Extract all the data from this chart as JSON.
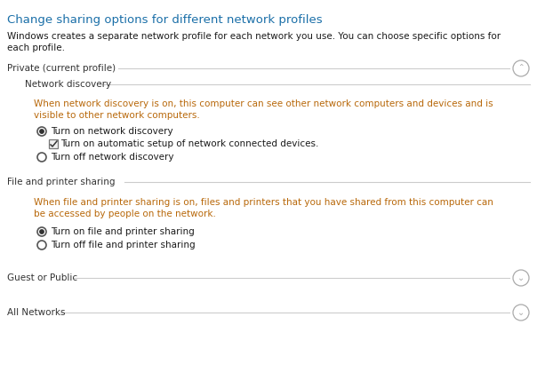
{
  "bg_color": "#ffffff",
  "title": "Change sharing options for different network profiles",
  "title_color": "#1a6fa8",
  "title_fontsize": 9.5,
  "subtitle_line1": "Windows creates a separate network profile for each network you use. You can choose specific options for",
  "subtitle_line2": "each profile.",
  "subtitle_color": "#1a1a1a",
  "subtitle_fontsize": 7.5,
  "section1_label": "Private (current profile)",
  "section2_label": "Network discovery",
  "section3_label": "File and printer sharing",
  "section4_label": "Guest or Public",
  "section5_label": "All Networks",
  "section_label_color": "#333333",
  "section_label_fontsize": 7.5,
  "nd_desc_line1": "When network discovery is on, this computer can see other network computers and devices and is",
  "nd_desc_line2": "visible to other network computers.",
  "nd_desc_color": "#b8680a",
  "nd_desc_fontsize": 7.5,
  "fps_desc_line1": "When file and printer sharing is on, files and printers that you have shared from this computer can",
  "fps_desc_line2": "be accessed by people on the network.",
  "fps_desc_color": "#b8680a",
  "fps_desc_fontsize": 7.5,
  "radio_outline_color": "#555555",
  "radio_dot_color": "#333333",
  "line_color": "#cccccc",
  "circle_btn_color": "#aaaaaa",
  "text_color": "#1a1a1a"
}
